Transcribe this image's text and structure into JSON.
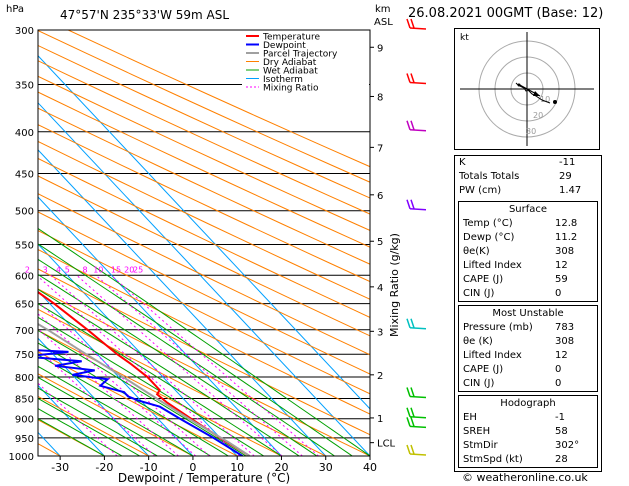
{
  "header": {
    "hpa_label": "hPa",
    "location": "47°57'N  235°33'W  59m  ASL",
    "km_label": "km",
    "asl_label": "ASL",
    "datetime": "26.08.2021  00GMT  (Base: 12)"
  },
  "chart_data": {
    "type": "skew-t",
    "xlabel": "Dewpoint / Temperature (°C)",
    "ylabel_right": "Mixing Ratio (g/kg)",
    "pressure_levels": [
      300,
      350,
      400,
      450,
      500,
      550,
      600,
      650,
      700,
      750,
      800,
      850,
      900,
      950,
      1000
    ],
    "pressure_tick_labels": [
      "300",
      "350",
      "400",
      "450",
      "500",
      "550",
      "600",
      "650",
      "700",
      "750",
      "800",
      "850",
      "900",
      "950",
      "1000"
    ],
    "x_ticks": [
      -30,
      -20,
      -10,
      0,
      10,
      20,
      30,
      40
    ],
    "x_tick_labels": [
      "-30",
      "-20",
      "-10",
      "0",
      "10",
      "20",
      "30",
      "40"
    ],
    "xlim": [
      -35,
      40
    ],
    "plim": [
      300,
      1000
    ],
    "km_ticks": [
      {
        "label": "9",
        "p": 315
      },
      {
        "label": "8",
        "p": 362
      },
      {
        "label": "7",
        "p": 418
      },
      {
        "label": "6",
        "p": 478
      },
      {
        "label": "5",
        "p": 545
      },
      {
        "label": "4",
        "p": 620
      },
      {
        "label": "3",
        "p": 703
      },
      {
        "label": "2",
        "p": 795
      },
      {
        "label": "1",
        "p": 898
      },
      {
        "label": "LCL",
        "p": 963
      }
    ],
    "mixing_ratio_labels": [
      {
        "label": "1",
        "t": -6
      },
      {
        "label": "2",
        "t": 1
      },
      {
        "label": "3",
        "t": 5
      },
      {
        "label": "4",
        "t": 8
      },
      {
        "label": "5",
        "t": 10
      },
      {
        "label": "8",
        "t": 14
      },
      {
        "label": "10",
        "t": 17
      },
      {
        "label": "15",
        "t": 21
      },
      {
        "label": "20",
        "t": 24
      },
      {
        "label": "25",
        "t": 26
      }
    ],
    "legend": [
      "Temperature",
      "Dewpoint",
      "Parcel Trajectory",
      "Dry Adiabat",
      "Wet Adiabat",
      "Isotherm",
      "Mixing Ratio"
    ],
    "legend_position": "top-right of plot",
    "colors": {
      "temperature": "#ff0000",
      "dewpoint": "#0000ff",
      "parcel": "#a0a0a0",
      "dry_adiabat": "#ff8000",
      "wet_adiabat": "#00a000",
      "isotherm": "#00a0ff",
      "mixing_ratio": "#ff00ff"
    },
    "series": [
      {
        "name": "Temperature",
        "points": [
          [
            1000,
            12.8
          ],
          [
            950,
            10
          ],
          [
            900,
            7.5
          ],
          [
            860,
            5.5
          ],
          [
            840,
            5
          ],
          [
            830,
            6.5
          ],
          [
            800,
            6.5
          ],
          [
            770,
            5.5
          ],
          [
            750,
            4.5
          ],
          [
            700,
            3
          ],
          [
            650,
            1
          ],
          [
            600,
            -2
          ],
          [
            550,
            -6
          ],
          [
            500,
            -11
          ],
          [
            450,
            -16
          ],
          [
            400,
            -23
          ],
          [
            380,
            -27
          ],
          [
            350,
            -31
          ],
          [
            300,
            -39
          ]
        ]
      },
      {
        "name": "Dewpoint",
        "points": [
          [
            1000,
            11.2
          ],
          [
            950,
            8.5
          ],
          [
            900,
            5
          ],
          [
            870,
            3
          ],
          [
            855,
            -0.5
          ],
          [
            845,
            -2
          ],
          [
            835,
            -2
          ],
          [
            820,
            -6
          ],
          [
            805,
            -3
          ],
          [
            795,
            -10
          ],
          [
            785,
            -4
          ],
          [
            775,
            -12
          ],
          [
            765,
            -5
          ],
          [
            755,
            -17
          ],
          [
            745,
            -6
          ],
          [
            738,
            -20
          ],
          [
            730,
            -12
          ],
          [
            722,
            -28
          ],
          [
            712,
            -14
          ],
          [
            705,
            -25
          ],
          [
            698,
            -14
          ],
          [
            690,
            -30
          ],
          [
            650,
            -36
          ],
          [
            600,
            -40
          ],
          [
            560,
            -34
          ],
          [
            520,
            -27
          ],
          [
            505,
            -27
          ],
          [
            495,
            -27
          ],
          [
            480,
            -22
          ],
          [
            450,
            -21
          ],
          [
            420,
            -23
          ],
          [
            400,
            -21
          ],
          [
            380,
            -23
          ],
          [
            350,
            -25
          ],
          [
            330,
            -24
          ],
          [
            310,
            -26
          ],
          [
            300,
            -28
          ]
        ]
      },
      {
        "name": "Parcel Trajectory",
        "points": [
          [
            1000,
            12.8
          ],
          [
            963,
            11
          ],
          [
            900,
            7
          ],
          [
            850,
            4
          ],
          [
            800,
            1
          ],
          [
            750,
            -2.5
          ],
          [
            700,
            -6
          ],
          [
            650,
            -10.5
          ],
          [
            600,
            -15
          ],
          [
            550,
            -20
          ],
          [
            500,
            -26
          ],
          [
            450,
            -32
          ],
          [
            400,
            -39
          ],
          [
            350,
            -47
          ],
          [
            300,
            -56
          ]
        ]
      }
    ],
    "wind_barbs": [
      {
        "p": 300,
        "color": "#ff0000"
      },
      {
        "p": 350,
        "color": "#ff0000"
      },
      {
        "p": 400,
        "color": "#c000c0"
      },
      {
        "p": 500,
        "color": "#8000ff"
      },
      {
        "p": 700,
        "color": "#00c0c0"
      },
      {
        "p": 850,
        "color": "#00c000"
      },
      {
        "p": 900,
        "color": "#00c000"
      },
      {
        "p": 925,
        "color": "#00c000"
      },
      {
        "p": 1000,
        "color": "#c0c000"
      }
    ]
  },
  "hodograph": {
    "unit_label": "kt",
    "ring_labels": [
      "10",
      "20",
      "30"
    ]
  },
  "indices": {
    "k_label": "K",
    "k": "-11",
    "tt_label": "Totals Totals",
    "tt": "29",
    "pw_label": "PW (cm)",
    "pw": "1.47",
    "surface": {
      "title": "Surface",
      "rows": [
        {
          "k": "Temp (°C)",
          "v": "12.8"
        },
        {
          "k": "Dewp (°C)",
          "v": "11.2"
        },
        {
          "k": "θe(K)",
          "v": "308"
        },
        {
          "k": "Lifted Index",
          "v": "12"
        },
        {
          "k": "CAPE (J)",
          "v": "59"
        },
        {
          "k": "CIN (J)",
          "v": "0"
        }
      ]
    },
    "most_unstable": {
      "title": "Most Unstable",
      "rows": [
        {
          "k": "Pressure (mb)",
          "v": "783"
        },
        {
          "k": "θe (K)",
          "v": "308"
        },
        {
          "k": "Lifted Index",
          "v": "12"
        },
        {
          "k": "CAPE (J)",
          "v": "0"
        },
        {
          "k": "CIN (J)",
          "v": "0"
        }
      ]
    },
    "hodograph_box": {
      "title": "Hodograph",
      "rows": [
        {
          "k": "EH",
          "v": "-1"
        },
        {
          "k": "SREH",
          "v": "58"
        },
        {
          "k": "StmDir",
          "v": "302°"
        },
        {
          "k": "StmSpd (kt)",
          "v": "28"
        }
      ]
    }
  },
  "footer": {
    "copyright": "© weatheronline.co.uk"
  }
}
